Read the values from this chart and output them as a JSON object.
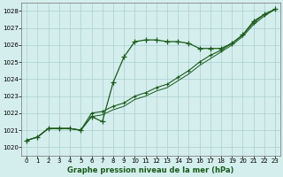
{
  "title": "Graphe pression niveau de la mer (hPa)",
  "bg_color": "#d4eeed",
  "grid_color": "#aacfcf",
  "line_dark": "#1a5c1a",
  "line_mid": "#2a7a2a",
  "xlim": [
    -0.5,
    23.5
  ],
  "ylim": [
    1019.5,
    1028.5
  ],
  "yticks": [
    1020,
    1021,
    1022,
    1023,
    1024,
    1025,
    1026,
    1027,
    1028
  ],
  "xticks": [
    0,
    1,
    2,
    3,
    4,
    5,
    6,
    7,
    8,
    9,
    10,
    11,
    12,
    13,
    14,
    15,
    16,
    17,
    18,
    19,
    20,
    21,
    22,
    23
  ],
  "series1_x": [
    0,
    1,
    2,
    3,
    4,
    5,
    6,
    7,
    8,
    9,
    10,
    11,
    12,
    13,
    14,
    15,
    16,
    17,
    18,
    19,
    20,
    21,
    22,
    23
  ],
  "series1_y": [
    1020.4,
    1020.6,
    1021.1,
    1021.1,
    1021.1,
    1021.0,
    1021.8,
    1021.5,
    1023.8,
    1025.3,
    1026.2,
    1026.3,
    1026.3,
    1026.2,
    1026.2,
    1026.1,
    1025.8,
    1025.8,
    1025.8,
    1026.1,
    1026.6,
    1027.4,
    1027.8,
    1028.1
  ],
  "series2_x": [
    0,
    1,
    2,
    3,
    4,
    5,
    6,
    7,
    8,
    9,
    10,
    11,
    12,
    13,
    14,
    15,
    16,
    17,
    18,
    19,
    20,
    21,
    22,
    23
  ],
  "series2_y": [
    1020.4,
    1020.6,
    1021.1,
    1021.1,
    1021.1,
    1021.0,
    1022.0,
    1022.1,
    1022.4,
    1022.6,
    1023.0,
    1023.2,
    1023.5,
    1023.7,
    1024.1,
    1024.5,
    1025.0,
    1025.4,
    1025.7,
    1026.1,
    1026.6,
    1027.3,
    1027.8,
    1028.1
  ],
  "series3_x": [
    0,
    1,
    2,
    3,
    4,
    5,
    6,
    7,
    8,
    9,
    10,
    11,
    12,
    13,
    14,
    15,
    16,
    17,
    18,
    19,
    20,
    21,
    22,
    23
  ],
  "series3_y": [
    1020.4,
    1020.6,
    1021.1,
    1021.1,
    1021.1,
    1021.0,
    1021.8,
    1021.9,
    1022.2,
    1022.4,
    1022.8,
    1023.0,
    1023.3,
    1023.5,
    1023.9,
    1024.3,
    1024.8,
    1025.2,
    1025.6,
    1026.0,
    1026.5,
    1027.2,
    1027.7,
    1028.1
  ]
}
